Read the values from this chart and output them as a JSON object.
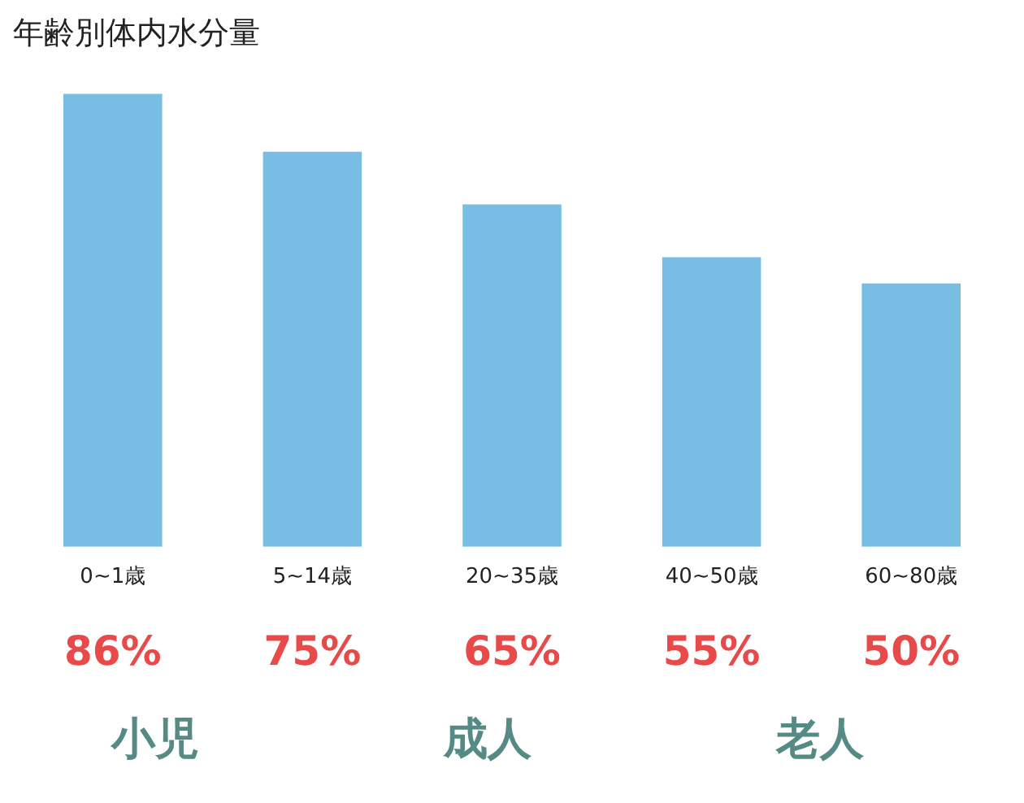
{
  "chart_data": {
    "type": "bar",
    "title": "年齢別体内水分量",
    "categories": [
      "0~1歳",
      "5~14歳",
      "20~35歳",
      "40~50歳",
      "60~80歳"
    ],
    "values": [
      86,
      75,
      65,
      55,
      50
    ],
    "value_labels": [
      "86%",
      "75%",
      "65%",
      "55%",
      "50%"
    ],
    "color": "#78bde3",
    "annotations": [
      "小児",
      "成人",
      "老人"
    ]
  }
}
